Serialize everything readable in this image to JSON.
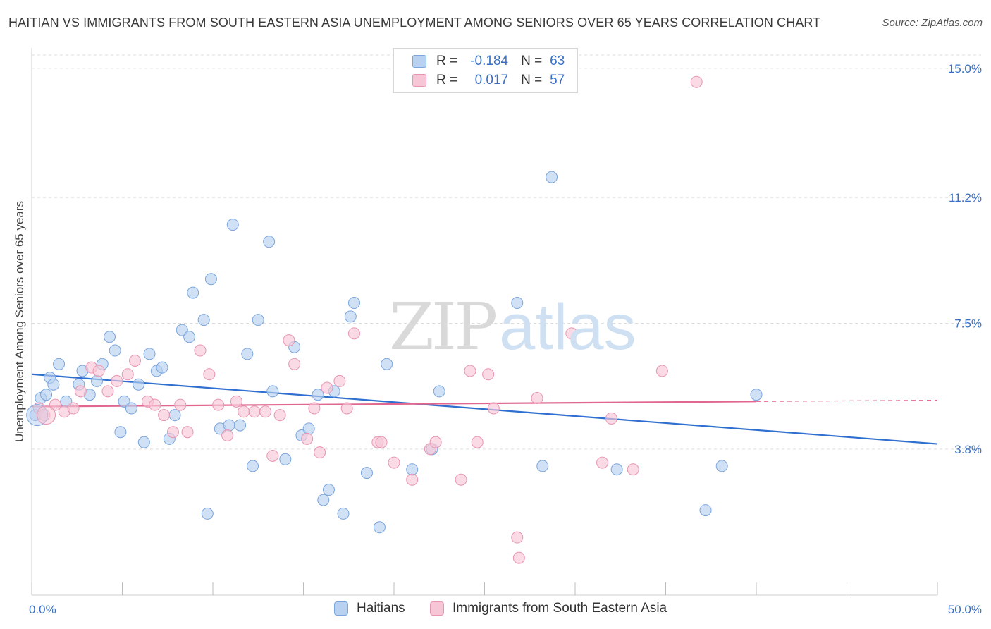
{
  "title": "HAITIAN VS IMMIGRANTS FROM SOUTH EASTERN ASIA UNEMPLOYMENT AMONG SENIORS OVER 65 YEARS CORRELATION CHART",
  "source": "Source: ZipAtlas.com",
  "watermark": {
    "zip": "ZIP",
    "atlas": "atlas"
  },
  "legend": {
    "rows": [
      {
        "r_label": "R =",
        "r_value": "-0.184",
        "n_label": "N =",
        "n_value": "63"
      },
      {
        "r_label": "R =",
        "r_value": "0.017",
        "n_label": "N =",
        "n_value": "57"
      }
    ]
  },
  "colors": {
    "blue_fill": "#b9d1f0",
    "blue_stroke": "#7aa5de",
    "blue_line": "#2f6fcf",
    "pink_fill": "#f7c6d6",
    "pink_stroke": "#e895b1",
    "pink_line": "#e0688f",
    "axis_label": "#3a6fc4",
    "grid": "#dcdcdc"
  },
  "chart_data": {
    "type": "scatter",
    "title": "HAITIAN VS IMMIGRANTS FROM SOUTH EASTERN ASIA UNEMPLOYMENT AMONG SENIORS OVER 65 YEARS CORRELATION CHART",
    "xlabel": "",
    "ylabel": "Unemployment Among Seniors over 65 years",
    "xlim": [
      0,
      50
    ],
    "ylim": [
      0,
      15.6
    ],
    "x_tick_labels": [
      {
        "value": 0,
        "label": "0.0%"
      },
      {
        "value": 50,
        "label": "50.0%"
      }
    ],
    "y_ticks": [
      {
        "value": 3.8,
        "label": "3.8%"
      },
      {
        "value": 7.5,
        "label": "7.5%"
      },
      {
        "value": 11.2,
        "label": "11.2%"
      },
      {
        "value": 15.0,
        "label": "15.0%"
      }
    ],
    "grid": true,
    "legend_position": "bottom",
    "series": [
      {
        "name": "Haitians",
        "r": -0.184,
        "n": 63,
        "trend": {
          "x": [
            0,
            50
          ],
          "y": [
            6.0,
            3.95
          ]
        },
        "points": [
          [
            0.2,
            4.8
          ],
          [
            0.5,
            5.3
          ],
          [
            0.8,
            5.4
          ],
          [
            1.0,
            5.9
          ],
          [
            1.2,
            5.7
          ],
          [
            1.5,
            6.3
          ],
          [
            1.9,
            5.2
          ],
          [
            2.6,
            5.7
          ],
          [
            2.8,
            6.1
          ],
          [
            3.2,
            5.4
          ],
          [
            3.6,
            5.8
          ],
          [
            3.9,
            6.3
          ],
          [
            4.3,
            7.1
          ],
          [
            4.6,
            6.7
          ],
          [
            4.9,
            4.3
          ],
          [
            5.1,
            5.2
          ],
          [
            5.5,
            5.0
          ],
          [
            5.9,
            5.7
          ],
          [
            6.2,
            4.0
          ],
          [
            6.5,
            6.6
          ],
          [
            6.9,
            6.1
          ],
          [
            7.2,
            6.2
          ],
          [
            7.6,
            4.1
          ],
          [
            7.9,
            4.8
          ],
          [
            8.3,
            7.3
          ],
          [
            8.7,
            7.1
          ],
          [
            8.9,
            8.4
          ],
          [
            9.5,
            7.6
          ],
          [
            9.7,
            1.9
          ],
          [
            9.9,
            8.8
          ],
          [
            10.4,
            4.4
          ],
          [
            10.9,
            4.5
          ],
          [
            11.1,
            10.4
          ],
          [
            11.5,
            4.5
          ],
          [
            11.9,
            6.6
          ],
          [
            12.2,
            3.3
          ],
          [
            12.5,
            7.6
          ],
          [
            13.1,
            9.9
          ],
          [
            13.3,
            5.5
          ],
          [
            14.0,
            3.5
          ],
          [
            14.5,
            6.8
          ],
          [
            14.9,
            4.2
          ],
          [
            15.3,
            4.4
          ],
          [
            15.8,
            5.4
          ],
          [
            16.1,
            2.3
          ],
          [
            16.4,
            2.6
          ],
          [
            16.7,
            5.5
          ],
          [
            17.2,
            1.9
          ],
          [
            17.6,
            7.7
          ],
          [
            17.8,
            8.1
          ],
          [
            18.5,
            3.1
          ],
          [
            19.2,
            1.5
          ],
          [
            19.6,
            6.3
          ],
          [
            21.0,
            3.2
          ],
          [
            22.1,
            3.8
          ],
          [
            22.5,
            5.5
          ],
          [
            26.8,
            8.1
          ],
          [
            28.2,
            3.3
          ],
          [
            28.7,
            11.8
          ],
          [
            32.3,
            3.2
          ],
          [
            37.2,
            2.0
          ],
          [
            38.1,
            3.3
          ],
          [
            40.0,
            5.4
          ]
        ]
      },
      {
        "name": "Immigrants from South Eastern Asia",
        "r": 0.017,
        "n": 57,
        "trend": {
          "x": [
            0,
            40
          ],
          "y": [
            5.05,
            5.2
          ]
        },
        "points": [
          [
            0.4,
            5.0
          ],
          [
            0.7,
            4.8
          ],
          [
            1.3,
            5.1
          ],
          [
            1.8,
            4.9
          ],
          [
            2.3,
            5.0
          ],
          [
            2.7,
            5.5
          ],
          [
            3.3,
            6.2
          ],
          [
            3.7,
            6.1
          ],
          [
            4.2,
            5.5
          ],
          [
            4.7,
            5.8
          ],
          [
            5.3,
            6.0
          ],
          [
            5.7,
            6.4
          ],
          [
            6.4,
            5.2
          ],
          [
            6.8,
            5.1
          ],
          [
            7.3,
            4.8
          ],
          [
            7.8,
            4.3
          ],
          [
            8.2,
            5.1
          ],
          [
            8.6,
            4.3
          ],
          [
            9.3,
            6.7
          ],
          [
            9.8,
            6.0
          ],
          [
            10.3,
            5.1
          ],
          [
            10.8,
            4.2
          ],
          [
            11.3,
            5.2
          ],
          [
            11.7,
            4.9
          ],
          [
            12.3,
            4.9
          ],
          [
            12.9,
            4.9
          ],
          [
            13.3,
            3.6
          ],
          [
            13.7,
            4.8
          ],
          [
            14.2,
            7.0
          ],
          [
            14.5,
            6.3
          ],
          [
            15.2,
            4.1
          ],
          [
            15.6,
            5.0
          ],
          [
            15.9,
            3.7
          ],
          [
            16.3,
            5.6
          ],
          [
            17.0,
            5.8
          ],
          [
            17.4,
            5.0
          ],
          [
            17.8,
            7.2
          ],
          [
            19.1,
            4.0
          ],
          [
            19.3,
            4.0
          ],
          [
            20.0,
            3.4
          ],
          [
            21.0,
            2.9
          ],
          [
            22.0,
            3.8
          ],
          [
            22.3,
            4.0
          ],
          [
            23.7,
            2.9
          ],
          [
            24.2,
            6.1
          ],
          [
            24.6,
            4.0
          ],
          [
            25.2,
            6.0
          ],
          [
            25.5,
            5.0
          ],
          [
            26.8,
            1.2
          ],
          [
            26.9,
            0.6
          ],
          [
            27.9,
            5.3
          ],
          [
            29.8,
            7.2
          ],
          [
            31.5,
            3.4
          ],
          [
            32.0,
            4.7
          ],
          [
            33.2,
            3.2
          ],
          [
            34.8,
            6.1
          ],
          [
            36.7,
            14.6
          ]
        ]
      }
    ]
  },
  "bottom_legend": [
    {
      "label": "Haitians"
    },
    {
      "label": "Immigrants from South Eastern Asia"
    }
  ]
}
